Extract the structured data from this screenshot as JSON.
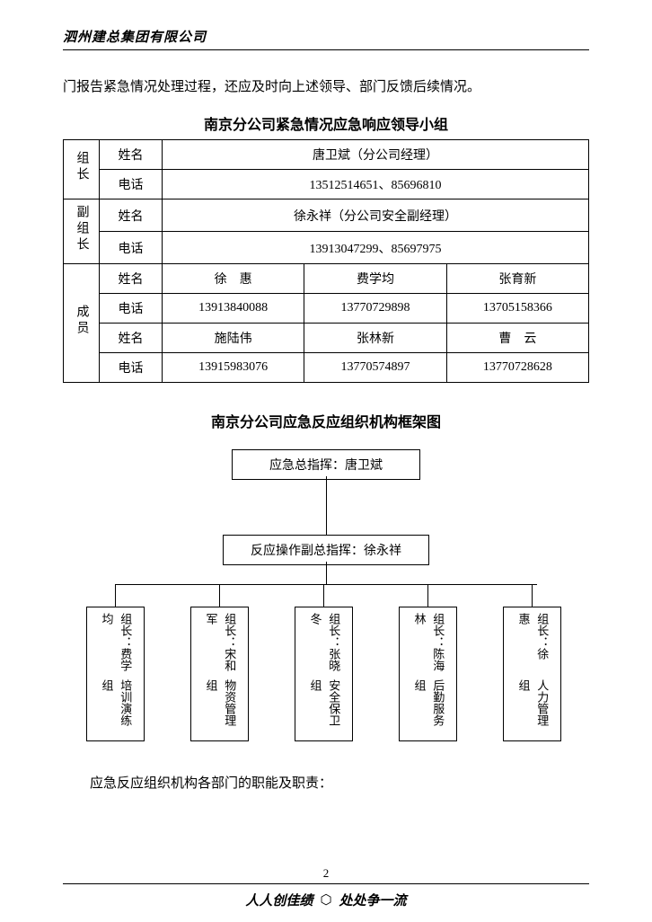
{
  "company_header": "泗州建总集团有限公司",
  "intro_text": "门报告紧急情况处理过程，还应及时向上述领导、部门反馈后续情况。",
  "table_title": "南京分公司紧急情况应急响应领导小组",
  "table": {
    "role1": "组长",
    "role2": "副组长",
    "role3": "成员",
    "label_name": "姓名",
    "label_phone": "电话",
    "leader_name": "唐卫斌（分公司经理）",
    "leader_phone": "13512514651、85696810",
    "deputy_name": "徐永祥（分公司安全副经理）",
    "deputy_phone": "13913047299、85697975",
    "members_r1_names": [
      "徐　惠",
      "费学均",
      "张育新"
    ],
    "members_r1_phones": [
      "13913840088",
      "13770729898",
      "13705158366"
    ],
    "members_r2_names": [
      "施陆伟",
      "张林新",
      "曹　云"
    ],
    "members_r2_phones": [
      "13915983076",
      "13770574897",
      "13770728628"
    ]
  },
  "chart_title": "南京分公司应急反应组织机构框架图",
  "flowchart": {
    "top": "应急总指挥：唐卫斌",
    "mid": "反应操作副总指挥：徐永祥",
    "leaves": [
      {
        "line1": "组长：费学均",
        "line2": "培训演练组"
      },
      {
        "line1": "组长：宋和军",
        "line2": "物资管理组"
      },
      {
        "line1": "组长：张晓冬",
        "line2": "安全保卫组"
      },
      {
        "line1": "组长：陈海林",
        "line2": "后勤服务组"
      },
      {
        "line1": "组长：徐　惠",
        "line2": "人力管理组"
      }
    ],
    "leaf_x": [
      26,
      142,
      258,
      374,
      490
    ],
    "leaf_line_x": [
      58,
      174,
      290,
      406,
      522
    ]
  },
  "dept_text": "应急反应组织机构各部门的职能及职责：",
  "page_number": "2",
  "footer_left": "人人创佳绩",
  "footer_right": "处处争一流",
  "colors": {
    "border": "#000000",
    "bg": "#ffffff",
    "text": "#000000"
  }
}
